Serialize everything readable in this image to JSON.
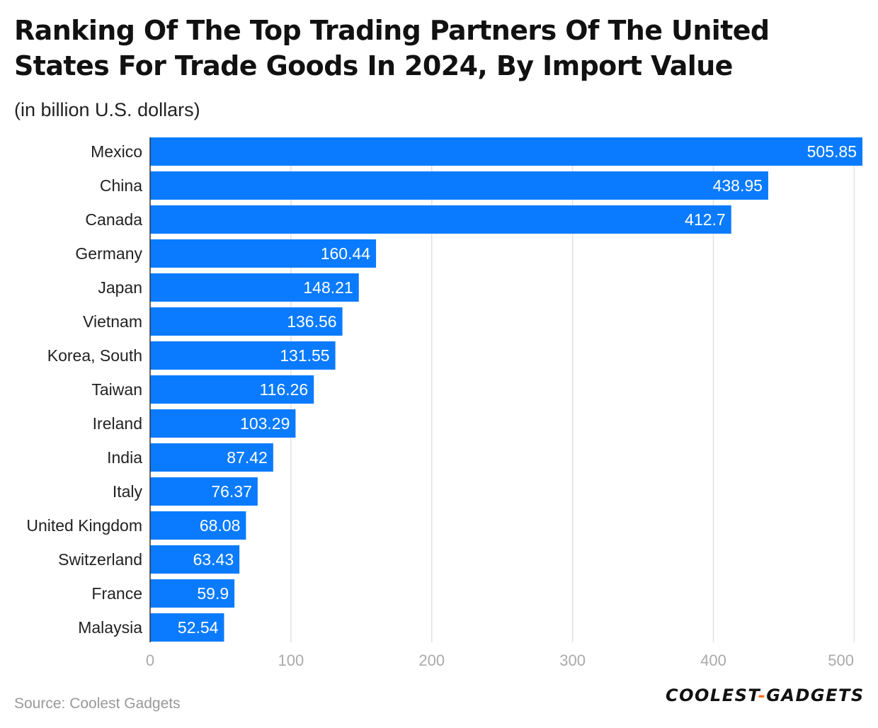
{
  "chart_data": {
    "type": "bar",
    "orientation": "horizontal",
    "title": "Ranking Of The Top Trading Partners Of The United States For Trade Goods In 2024, By Import Value",
    "subtitle": "(in billion U.S. dollars)",
    "categories": [
      "Mexico",
      "China",
      "Canada",
      "Germany",
      "Japan",
      "Vietnam",
      "Korea, South",
      "Taiwan",
      "Ireland",
      "India",
      "Italy",
      "United Kingdom",
      "Switzerland",
      "France",
      "Malaysia"
    ],
    "values": [
      505.85,
      438.95,
      412.7,
      160.44,
      148.21,
      136.56,
      131.55,
      116.26,
      103.29,
      87.42,
      76.37,
      68.08,
      63.43,
      59.9,
      52.54
    ],
    "value_labels": [
      "505.85",
      "438.95",
      "412.7",
      "160.44",
      "148.21",
      "136.56",
      "131.55",
      "116.26",
      "103.29",
      "87.42",
      "76.37",
      "68.08",
      "63.43",
      "59.9",
      "52.54"
    ],
    "xlim": [
      0,
      505.85
    ],
    "xticks": [
      0,
      100,
      200,
      300,
      400,
      500
    ],
    "grid": true,
    "bar_color": "#0a7bff",
    "label_color": "#ffffff",
    "grid_color": "#e0e0e0",
    "tick_color": "#aaaaaa"
  },
  "footer": {
    "source": "Source: Coolest Gadgets",
    "logo_part1": "COOLEST",
    "logo_sep": "-",
    "logo_part2": "GADGETS"
  }
}
